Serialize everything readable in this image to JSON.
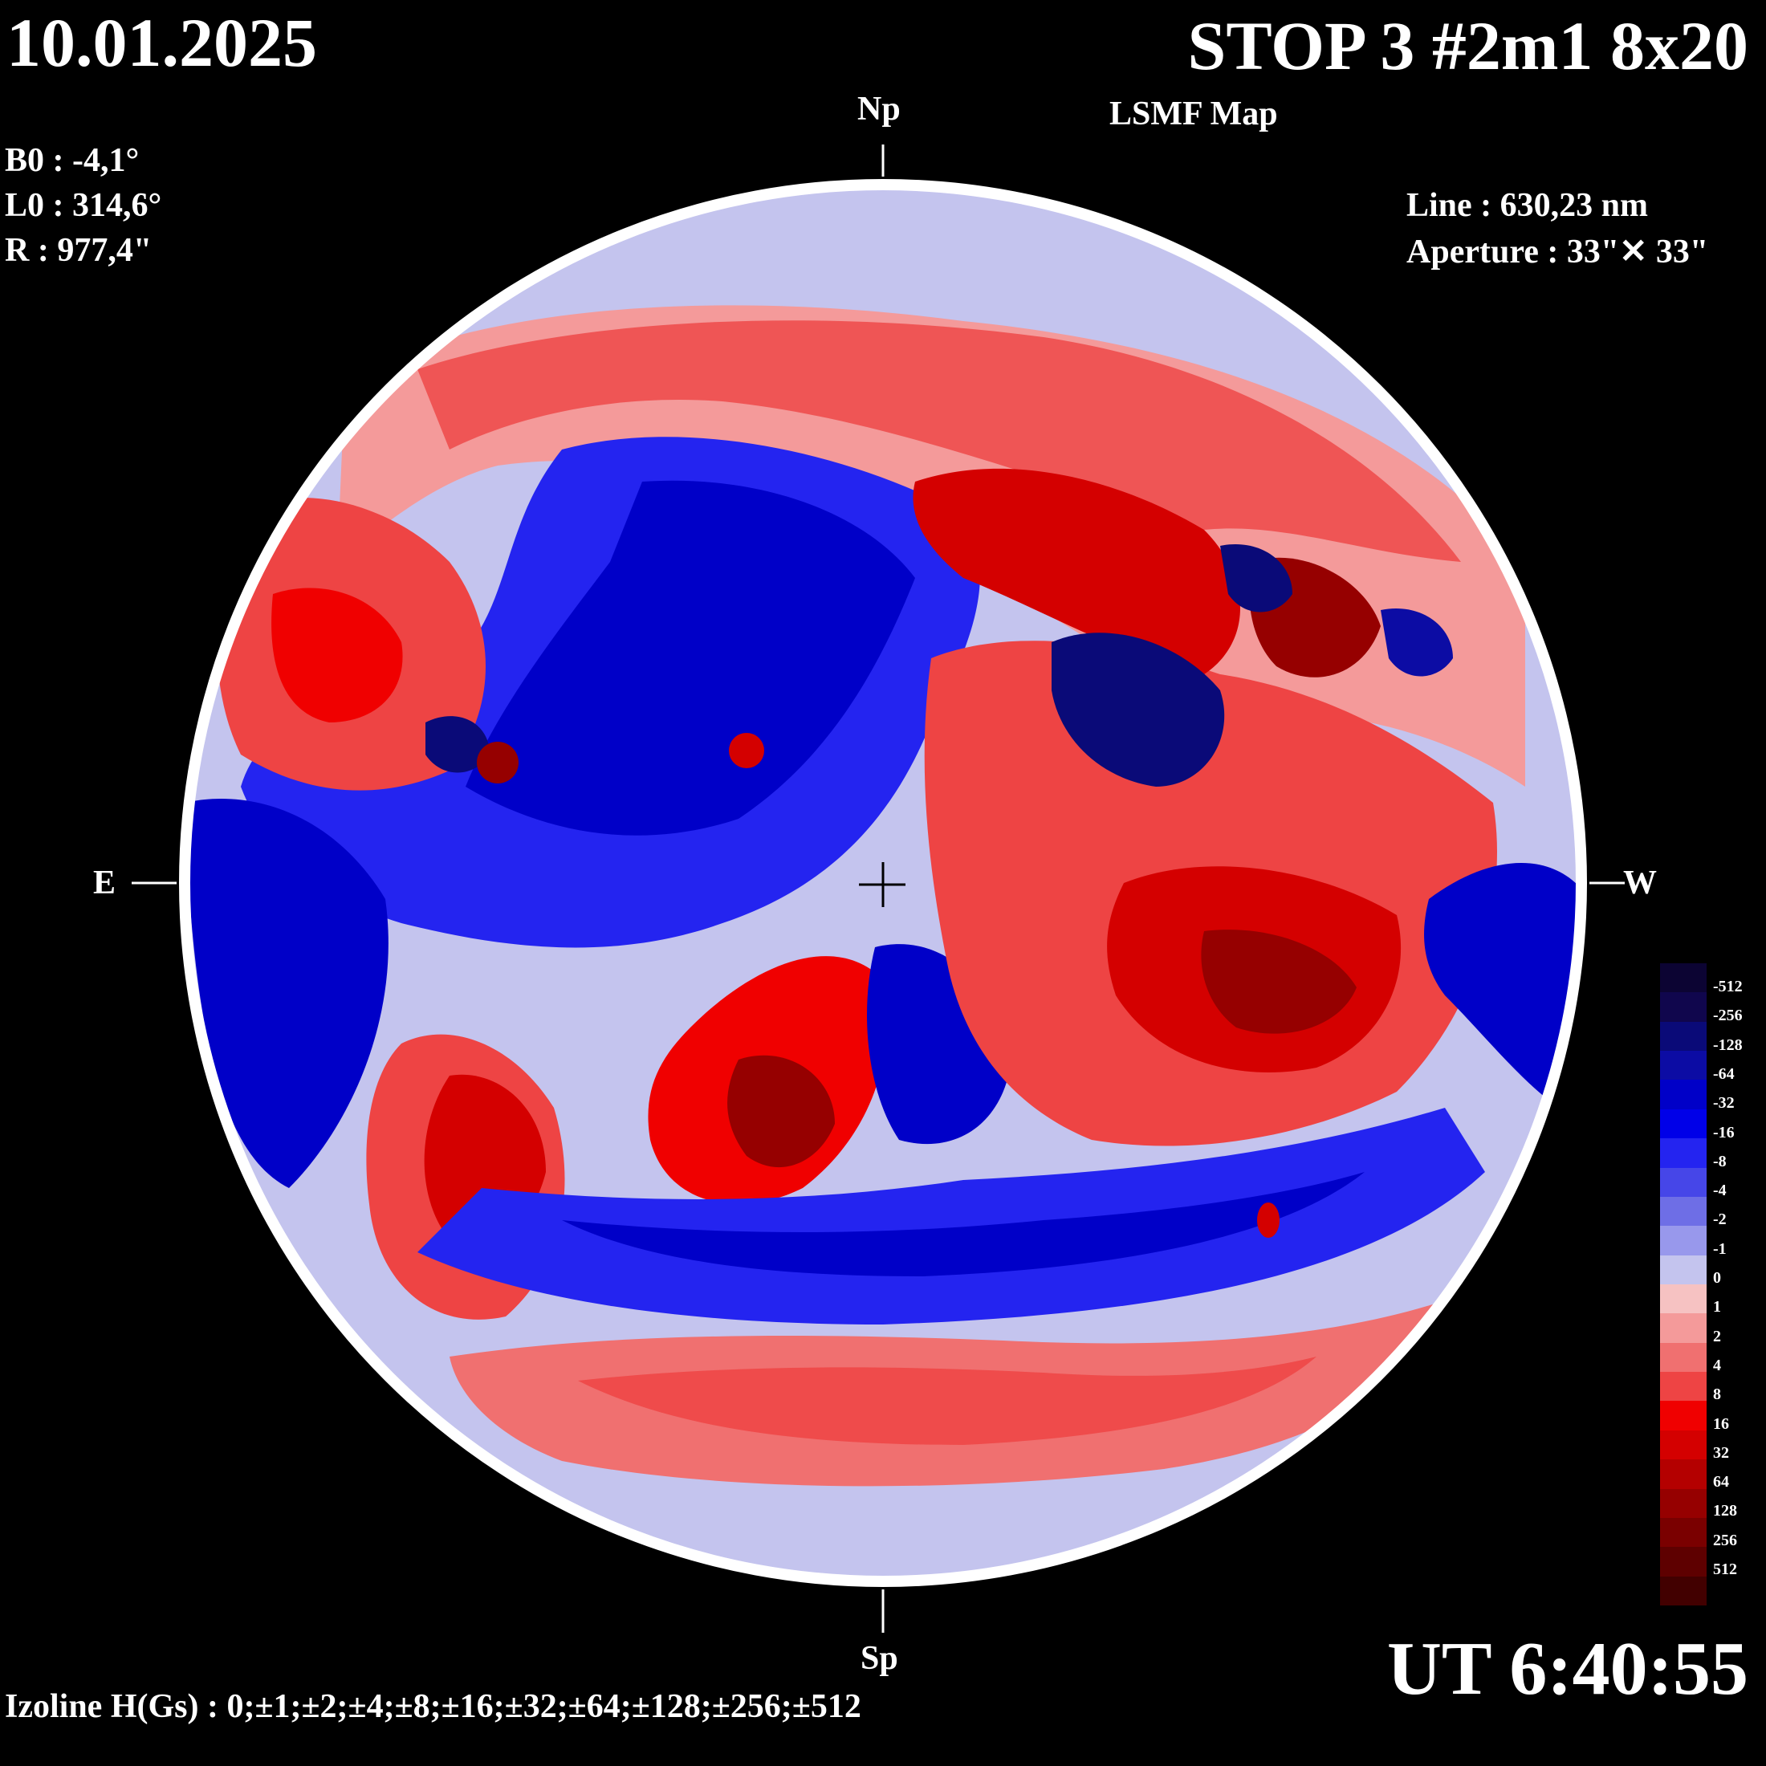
{
  "header": {
    "date": "10.01.2025",
    "title": "STOP 3 #2m1 8x20",
    "subtitle": "LSMF  Map"
  },
  "params": {
    "b0": "B0 : -4,1°",
    "l0": "L0 : 314,6°",
    "r": "R  : 977,4\""
  },
  "instrument": {
    "line": "Line :  630,23 nm",
    "aperture": "Aperture : 33\"✕ 33\""
  },
  "directions": {
    "north": "Np",
    "south": "Sp",
    "east": "E",
    "west": "W"
  },
  "time": "UT 6:40:55",
  "izoline": "Izoline H(Gs) : 0;±1;±2;±4;±8;±16;±32;±64;±128;±256;±512",
  "colors": {
    "background": "#000000",
    "contour": "#ffffff",
    "negative": [
      "#0c0433",
      "#10064d",
      "#0a0a78",
      "#0c0ca4",
      "#0000c8",
      "#0000e8",
      "#2424f0",
      "#4646e8",
      "#6e6ee6",
      "#9898ec",
      "#c4c4ee"
    ],
    "positive": [
      "#f6c2c2",
      "#f49a9a",
      "#f07070",
      "#ee4444",
      "#f00000",
      "#d40000",
      "#b40000",
      "#960000",
      "#7a0000",
      "#5e0000",
      "#420000"
    ]
  },
  "scale": {
    "labels": [
      "-512",
      "-256",
      "-128",
      "-64",
      "-32",
      "-16",
      "-8",
      "-4",
      "-2",
      "-1",
      "0",
      "1",
      "2",
      "4",
      "8",
      "16",
      "32",
      "64",
      "128",
      "256",
      "512"
    ]
  }
}
